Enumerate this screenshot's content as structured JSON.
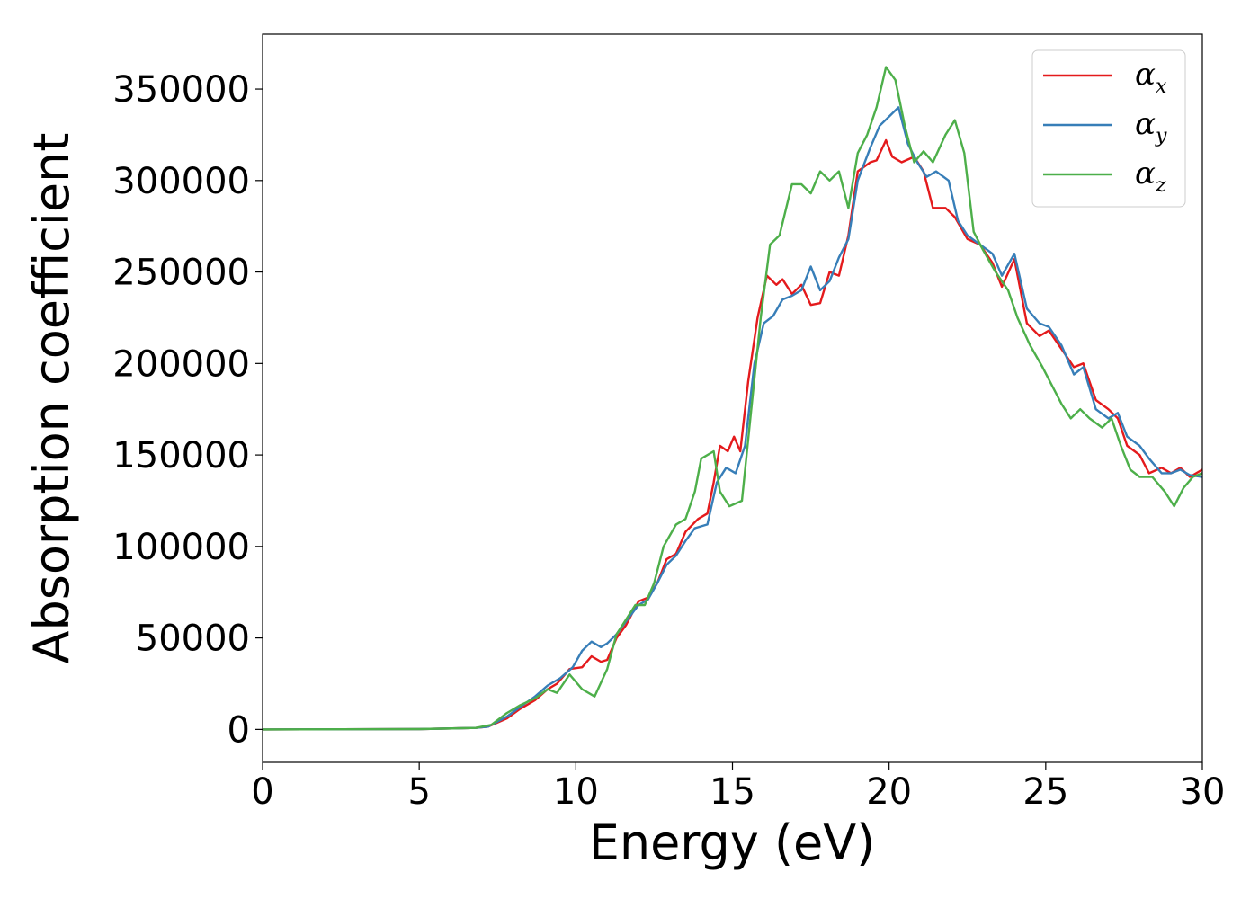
{
  "chart_data": {
    "type": "line",
    "xlabel": "Energy (eV)",
    "ylabel": "Absorption coefficient",
    "xlim": [
      0,
      30
    ],
    "ylim": [
      -18000,
      380000
    ],
    "x_ticks": [
      0,
      5,
      10,
      15,
      20,
      25,
      30
    ],
    "x_tick_labels": [
      "0",
      "5",
      "10",
      "15",
      "20",
      "25",
      "30"
    ],
    "y_ticks": [
      0,
      50000,
      100000,
      150000,
      200000,
      250000,
      300000,
      350000
    ],
    "y_tick_labels": [
      "0",
      "50000",
      "100000",
      "150000",
      "200000",
      "250000",
      "300000",
      "350000"
    ],
    "grid": false,
    "legend_position": "top-right",
    "series": [
      {
        "name": "α_x",
        "label_main": "α",
        "label_sub": "x",
        "color": "#e41a1c",
        "points": [
          [
            0,
            0
          ],
          [
            5,
            200
          ],
          [
            6.8,
            800
          ],
          [
            7.2,
            1500
          ],
          [
            7.8,
            6000
          ],
          [
            8.2,
            11000
          ],
          [
            8.7,
            16000
          ],
          [
            9.1,
            22000
          ],
          [
            9.4,
            25000
          ],
          [
            9.8,
            33000
          ],
          [
            10.2,
            34000
          ],
          [
            10.5,
            40000
          ],
          [
            10.8,
            37000
          ],
          [
            11.0,
            38000
          ],
          [
            11.3,
            50000
          ],
          [
            11.6,
            57000
          ],
          [
            12.0,
            70000
          ],
          [
            12.3,
            72000
          ],
          [
            12.6,
            80000
          ],
          [
            12.9,
            93000
          ],
          [
            13.2,
            96000
          ],
          [
            13.5,
            108000
          ],
          [
            13.9,
            115000
          ],
          [
            14.2,
            118000
          ],
          [
            14.4,
            135000
          ],
          [
            14.6,
            155000
          ],
          [
            14.85,
            152000
          ],
          [
            15.05,
            160000
          ],
          [
            15.25,
            152000
          ],
          [
            15.5,
            190000
          ],
          [
            15.8,
            225000
          ],
          [
            16.1,
            248000
          ],
          [
            16.4,
            243000
          ],
          [
            16.6,
            246000
          ],
          [
            16.9,
            238000
          ],
          [
            17.2,
            243000
          ],
          [
            17.5,
            232000
          ],
          [
            17.8,
            233000
          ],
          [
            18.1,
            250000
          ],
          [
            18.4,
            248000
          ],
          [
            18.7,
            270000
          ],
          [
            19.0,
            305000
          ],
          [
            19.4,
            310000
          ],
          [
            19.6,
            311000
          ],
          [
            19.9,
            322000
          ],
          [
            20.1,
            313000
          ],
          [
            20.4,
            310000
          ],
          [
            20.8,
            313000
          ],
          [
            21.1,
            305000
          ],
          [
            21.4,
            285000
          ],
          [
            21.8,
            285000
          ],
          [
            22.1,
            280000
          ],
          [
            22.5,
            268000
          ],
          [
            22.9,
            265000
          ],
          [
            23.3,
            255000
          ],
          [
            23.6,
            242000
          ],
          [
            24.0,
            257000
          ],
          [
            24.4,
            222000
          ],
          [
            24.8,
            215000
          ],
          [
            25.1,
            218000
          ],
          [
            25.5,
            208000
          ],
          [
            25.9,
            198000
          ],
          [
            26.2,
            200000
          ],
          [
            26.6,
            180000
          ],
          [
            27.0,
            175000
          ],
          [
            27.3,
            170000
          ],
          [
            27.6,
            155000
          ],
          [
            28.0,
            150000
          ],
          [
            28.3,
            140000
          ],
          [
            28.7,
            143000
          ],
          [
            29.0,
            140000
          ],
          [
            29.3,
            143000
          ],
          [
            29.6,
            138000
          ],
          [
            30.0,
            142000
          ]
        ]
      },
      {
        "name": "α_y",
        "label_main": "α",
        "label_sub": "y",
        "color": "#377eb8",
        "points": [
          [
            0,
            0
          ],
          [
            5,
            200
          ],
          [
            6.8,
            800
          ],
          [
            7.2,
            1500
          ],
          [
            7.8,
            7000
          ],
          [
            8.2,
            12000
          ],
          [
            8.7,
            18000
          ],
          [
            9.1,
            24000
          ],
          [
            9.5,
            28000
          ],
          [
            9.9,
            34000
          ],
          [
            10.2,
            43000
          ],
          [
            10.5,
            48000
          ],
          [
            10.8,
            45000
          ],
          [
            11.0,
            47000
          ],
          [
            11.3,
            52000
          ],
          [
            11.6,
            59000
          ],
          [
            12.0,
            68000
          ],
          [
            12.3,
            71000
          ],
          [
            12.6,
            80000
          ],
          [
            12.9,
            90000
          ],
          [
            13.2,
            95000
          ],
          [
            13.5,
            103000
          ],
          [
            13.8,
            110000
          ],
          [
            14.2,
            112000
          ],
          [
            14.5,
            135000
          ],
          [
            14.8,
            143000
          ],
          [
            15.1,
            140000
          ],
          [
            15.4,
            155000
          ],
          [
            15.7,
            200000
          ],
          [
            16.0,
            222000
          ],
          [
            16.3,
            226000
          ],
          [
            16.6,
            235000
          ],
          [
            16.9,
            237000
          ],
          [
            17.2,
            240000
          ],
          [
            17.5,
            253000
          ],
          [
            17.8,
            240000
          ],
          [
            18.1,
            245000
          ],
          [
            18.4,
            258000
          ],
          [
            18.7,
            268000
          ],
          [
            19.0,
            300000
          ],
          [
            19.4,
            318000
          ],
          [
            19.7,
            330000
          ],
          [
            20.0,
            335000
          ],
          [
            20.3,
            340000
          ],
          [
            20.6,
            320000
          ],
          [
            20.9,
            310000
          ],
          [
            21.2,
            302000
          ],
          [
            21.5,
            305000
          ],
          [
            21.9,
            300000
          ],
          [
            22.2,
            278000
          ],
          [
            22.5,
            270000
          ],
          [
            22.9,
            265000
          ],
          [
            23.3,
            260000
          ],
          [
            23.6,
            248000
          ],
          [
            24.0,
            260000
          ],
          [
            24.4,
            230000
          ],
          [
            24.8,
            222000
          ],
          [
            25.1,
            220000
          ],
          [
            25.5,
            210000
          ],
          [
            25.9,
            194000
          ],
          [
            26.2,
            198000
          ],
          [
            26.6,
            175000
          ],
          [
            27.0,
            170000
          ],
          [
            27.3,
            173000
          ],
          [
            27.6,
            160000
          ],
          [
            28.0,
            155000
          ],
          [
            28.3,
            148000
          ],
          [
            28.7,
            140000
          ],
          [
            29.0,
            140000
          ],
          [
            29.3,
            142000
          ],
          [
            29.6,
            139000
          ],
          [
            30.0,
            138000
          ]
        ]
      },
      {
        "name": "α_z",
        "label_main": "α",
        "label_sub": "z",
        "color": "#4daf4a",
        "points": [
          [
            0,
            0
          ],
          [
            5,
            200
          ],
          [
            6.8,
            800
          ],
          [
            7.3,
            2500
          ],
          [
            7.8,
            9000
          ],
          [
            8.2,
            13000
          ],
          [
            8.7,
            17000
          ],
          [
            9.1,
            22000
          ],
          [
            9.4,
            20000
          ],
          [
            9.8,
            30000
          ],
          [
            10.2,
            22000
          ],
          [
            10.6,
            18000
          ],
          [
            11.0,
            33000
          ],
          [
            11.3,
            52000
          ],
          [
            11.6,
            60000
          ],
          [
            11.9,
            68000
          ],
          [
            12.2,
            68000
          ],
          [
            12.5,
            80000
          ],
          [
            12.8,
            100000
          ],
          [
            13.2,
            112000
          ],
          [
            13.5,
            115000
          ],
          [
            13.8,
            130000
          ],
          [
            14.0,
            148000
          ],
          [
            14.4,
            152000
          ],
          [
            14.6,
            130000
          ],
          [
            14.9,
            122000
          ],
          [
            15.3,
            125000
          ],
          [
            15.6,
            175000
          ],
          [
            15.9,
            225000
          ],
          [
            16.2,
            265000
          ],
          [
            16.5,
            270000
          ],
          [
            16.9,
            298000
          ],
          [
            17.2,
            298000
          ],
          [
            17.5,
            293000
          ],
          [
            17.8,
            305000
          ],
          [
            18.1,
            300000
          ],
          [
            18.4,
            305000
          ],
          [
            18.7,
            285000
          ],
          [
            19.0,
            315000
          ],
          [
            19.3,
            325000
          ],
          [
            19.6,
            340000
          ],
          [
            19.9,
            362000
          ],
          [
            20.2,
            355000
          ],
          [
            20.5,
            330000
          ],
          [
            20.8,
            310000
          ],
          [
            21.1,
            316000
          ],
          [
            21.4,
            310000
          ],
          [
            21.8,
            325000
          ],
          [
            22.1,
            333000
          ],
          [
            22.4,
            315000
          ],
          [
            22.7,
            272000
          ],
          [
            23.0,
            262000
          ],
          [
            23.4,
            250000
          ],
          [
            23.8,
            240000
          ],
          [
            24.1,
            225000
          ],
          [
            24.5,
            210000
          ],
          [
            24.9,
            198000
          ],
          [
            25.2,
            188000
          ],
          [
            25.5,
            178000
          ],
          [
            25.8,
            170000
          ],
          [
            26.1,
            175000
          ],
          [
            26.4,
            170000
          ],
          [
            26.8,
            165000
          ],
          [
            27.1,
            170000
          ],
          [
            27.4,
            155000
          ],
          [
            27.7,
            142000
          ],
          [
            28.0,
            138000
          ],
          [
            28.4,
            138000
          ],
          [
            28.8,
            130000
          ],
          [
            29.1,
            122000
          ],
          [
            29.4,
            132000
          ],
          [
            29.7,
            138000
          ],
          [
            30.0,
            140000
          ]
        ]
      }
    ]
  }
}
